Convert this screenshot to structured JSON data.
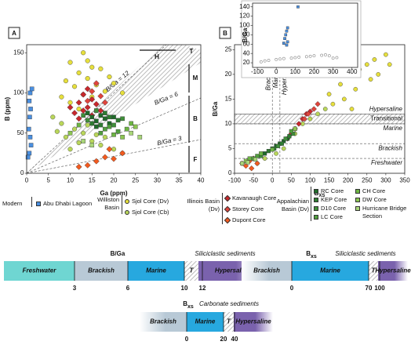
{
  "chart_data": [
    {
      "type": "scatter",
      "panel": "A",
      "xlabel": "Ga (ppm)",
      "ylabel": "B (ppm)",
      "xlim": [
        0,
        40
      ],
      "ylim": [
        0,
        160
      ],
      "xticks": [
        0,
        5,
        10,
        15,
        20,
        25,
        30,
        35,
        40
      ],
      "yticks": [
        0,
        50,
        100,
        150
      ],
      "annotations": [
        "B/Ga = 12",
        "B/Ga = 6",
        "B/Ga = 3"
      ],
      "zones": [
        "H",
        "T",
        "M",
        "B",
        "F"
      ],
      "series": [
        {
          "name": "Abu Dhabi Lagoon",
          "color": "#4a8fe0",
          "marker": "square",
          "x": [
            0.8,
            0.6,
            0.9,
            0.7,
            0.5,
            0.8,
            1.0,
            0.6,
            1.2,
            0.3
          ],
          "y": [
            100,
            90,
            80,
            70,
            55,
            45,
            35,
            25,
            105,
            20
          ]
        },
        {
          "name": "Sjol Core (Dv)",
          "color": "#e6df3c",
          "marker": "circle",
          "x": [
            13,
            10,
            15,
            12,
            17,
            14,
            9,
            16,
            20,
            11,
            18,
            13,
            8,
            15,
            10,
            22,
            12,
            19,
            14
          ],
          "y": [
            150,
            138,
            132,
            125,
            130,
            118,
            115,
            110,
            112,
            108,
            102,
            98,
            95,
            95,
            88,
            100,
            80,
            120,
            140
          ]
        },
        {
          "name": "Sjol Core (Cb)",
          "color": "#b9d65a",
          "marker": "circle",
          "x": [
            6,
            8,
            11,
            13,
            9,
            15,
            17,
            20,
            12,
            16,
            7,
            14,
            18,
            22,
            10
          ],
          "y": [
            70,
            62,
            55,
            50,
            45,
            40,
            35,
            30,
            38,
            48,
            52,
            60,
            45,
            25,
            30
          ]
        },
        {
          "name": "Kavanaugh Core",
          "color": "#c8282d",
          "marker": "diamond",
          "x": [
            14,
            13,
            15,
            12,
            14,
            16,
            13,
            11,
            15,
            12,
            17,
            10
          ],
          "y": [
            105,
            98,
            92,
            88,
            82,
            86,
            78,
            75,
            72,
            68,
            78,
            82
          ]
        },
        {
          "name": "Storey Core",
          "color": "#e0443c",
          "marker": "diamond",
          "x": [
            16,
            15,
            17,
            14,
            18
          ],
          "y": [
            112,
            102,
            96,
            90,
            88
          ]
        },
        {
          "name": "Dupont Core",
          "color": "#f25a1f",
          "marker": "diamond",
          "x": [
            18,
            16,
            20,
            14,
            22,
            12,
            19
          ],
          "y": [
            20,
            15,
            18,
            10,
            25,
            8,
            30
          ]
        },
        {
          "name": "RC Core",
          "color": "#1f6b2a",
          "marker": "square",
          "x": [
            15,
            16,
            17,
            18,
            19,
            14,
            20,
            16
          ],
          "y": [
            70,
            65,
            72,
            68,
            62,
            75,
            70,
            58
          ]
        },
        {
          "name": "KEP Core",
          "color": "#2f7d32",
          "marker": "square",
          "x": [
            17,
            18,
            19,
            21,
            15
          ],
          "y": [
            60,
            75,
            70,
            66,
            62
          ]
        },
        {
          "name": "D10 Core",
          "color": "#3f8f3a",
          "marker": "square",
          "x": [
            14,
            16,
            20,
            22,
            13
          ],
          "y": [
            66,
            78,
            60,
            68,
            72
          ]
        },
        {
          "name": "LC Core",
          "color": "#519f3e",
          "marker": "square",
          "x": [
            18,
            17,
            19,
            21
          ],
          "y": [
            55,
            50,
            58,
            52
          ]
        },
        {
          "name": "CH Core",
          "color": "#6db544",
          "marker": "square",
          "x": [
            12,
            20,
            23,
            24
          ],
          "y": [
            60,
            48,
            55,
            62
          ]
        },
        {
          "name": "DW Core",
          "color": "#8cc652",
          "marker": "square",
          "x": [
            10,
            22,
            25
          ],
          "y": [
            50,
            45,
            58
          ]
        },
        {
          "name": "Hurricane Bridge Section",
          "color": "#a9d67a",
          "marker": "square",
          "x": [
            13,
            24,
            26,
            15
          ],
          "y": [
            40,
            50,
            45,
            35
          ]
        }
      ]
    },
    {
      "type": "scatter",
      "panel": "B",
      "xlabel": "B",
      "xlabel_sub": "XS",
      "ylabel": "B/Ga",
      "xlim": [
        -100,
        350
      ],
      "ylim": [
        0,
        26
      ],
      "xticks": [
        -100,
        -50,
        0,
        50,
        100,
        150,
        200,
        250,
        300,
        350
      ],
      "yticks": [
        0,
        5,
        10,
        15,
        20,
        25
      ],
      "hlines": [
        {
          "value": 3,
          "label": "Freshwater"
        },
        {
          "value": 6,
          "label": "Brackish"
        },
        {
          "value": 10,
          "label": "Marine"
        },
        {
          "value": 12,
          "label": "Transitional"
        }
      ],
      "above_label": "Hypersaline",
      "vlines": [
        {
          "value": 0,
          "label": "Brackish"
        },
        {
          "value": 20,
          "label": "Marine"
        }
      ],
      "right_label": "Hypersaline",
      "series": [
        {
          "color": "#e6df3c",
          "marker": "circle",
          "x": [
            150,
            180,
            200,
            230,
            250,
            270,
            300,
            310,
            220,
            190,
            260,
            160,
            210,
            280
          ],
          "y": [
            16,
            18,
            20,
            21,
            22,
            23,
            24,
            22,
            17,
            15,
            19,
            14,
            13,
            20
          ]
        },
        {
          "color": "#b9d65a",
          "marker": "circle",
          "x": [
            20,
            40,
            60,
            80,
            100,
            30,
            10,
            -20,
            -40,
            120,
            140
          ],
          "y": [
            6,
            7,
            8,
            10,
            11,
            5,
            4,
            3,
            2,
            12,
            13
          ]
        },
        {
          "color": "#c8282d",
          "marker": "diamond",
          "x": [
            50,
            60,
            70,
            80,
            90,
            100,
            40
          ],
          "y": [
            8,
            9,
            10,
            11,
            12,
            12.5,
            7
          ]
        },
        {
          "color": "#e0443c",
          "marker": "diamond",
          "x": [
            110,
            120,
            95,
            85
          ],
          "y": [
            13,
            14,
            12,
            11
          ]
        },
        {
          "color": "#f25a1f",
          "marker": "diamond",
          "x": [
            -80,
            -70,
            -60,
            -50,
            -40,
            -55
          ],
          "y": [
            2,
            1.5,
            2.5,
            3,
            2,
            1
          ]
        },
        {
          "color": "#1f6b2a",
          "marker": "square",
          "x": [
            -20,
            0,
            20,
            40,
            10,
            30
          ],
          "y": [
            4,
            5,
            6,
            7,
            5.5,
            6.5
          ]
        },
        {
          "color": "#2f7d32",
          "marker": "square",
          "x": [
            -10,
            5,
            25,
            45
          ],
          "y": [
            4.5,
            5,
            6,
            7.5
          ]
        },
        {
          "color": "#3f8f3a",
          "marker": "square",
          "x": [
            15,
            35,
            55,
            -30
          ],
          "y": [
            5.5,
            7,
            8,
            3.5
          ]
        },
        {
          "color": "#519f3e",
          "marker": "square",
          "x": [
            -50,
            -40,
            50
          ],
          "y": [
            3,
            3.5,
            8.5
          ]
        },
        {
          "color": "#6db544",
          "marker": "square",
          "x": [
            -60,
            -30,
            0
          ],
          "y": [
            3,
            4,
            4.8
          ]
        },
        {
          "color": "#8cc652",
          "marker": "square",
          "x": [
            -70,
            60
          ],
          "y": [
            2.5,
            9
          ]
        },
        {
          "color": "#a9d67a",
          "marker": "square",
          "x": [
            -80,
            -45,
            -65
          ],
          "y": [
            2,
            2.8,
            2.2
          ]
        }
      ]
    },
    {
      "type": "scatter",
      "ylabel": "B/Ga",
      "xlim": [
        -125,
        430
      ],
      "ylim": [
        10,
        148
      ],
      "xticks": [
        -100,
        0,
        100,
        200,
        300,
        400
      ],
      "yticks": [
        20,
        40,
        60,
        80,
        100,
        120,
        140
      ],
      "series": [
        {
          "color": "#4a8fe0",
          "marker": "square",
          "x": [
            115,
            60,
            55,
            50,
            45,
            60,
            40,
            55
          ],
          "y": [
            140,
            95,
            88,
            80,
            72,
            65,
            62,
            58
          ]
        },
        {
          "color": "#888888",
          "marker": "ring",
          "x": [
            -80,
            -40,
            0,
            40,
            80,
            120,
            160,
            200,
            240,
            280,
            300,
            320,
            100,
            -60,
            20,
            180,
            260
          ],
          "y": [
            22,
            25,
            27,
            29,
            30,
            32,
            33,
            35,
            36,
            35,
            30,
            31,
            31,
            24,
            28,
            34,
            37
          ]
        }
      ]
    }
  ],
  "legend_groups": [
    "Modern",
    "Williston Basin",
    "Illinois Basin (Dv)",
    "Appalachian Basin (Dv)"
  ],
  "scales": [
    {
      "title": "B/Ga",
      "note": "Siliciclastic sediments",
      "boundaries": [
        3,
        6,
        10,
        12
      ],
      "segments": [
        {
          "label": "Freshwater",
          "color": "#6fd6d2"
        },
        {
          "label": "Brackish",
          "color": "#b8c9d6"
        },
        {
          "label": "Marine",
          "color": "#27a8df"
        },
        {
          "label": "T",
          "color": "#ffffff",
          "hatched": true
        },
        {
          "label": "Hypersaline",
          "color": "#7a62ad",
          "fade": "right"
        }
      ]
    },
    {
      "title": "B",
      "title_sub": "xs",
      "note": "Siliciclastic sediments",
      "boundaries": [
        0,
        70,
        100
      ],
      "segments": [
        {
          "label": "Brackish",
          "color": "#b8c9d6",
          "fade": "left"
        },
        {
          "label": "Marine",
          "color": "#27a8df"
        },
        {
          "label": "T",
          "color": "#ffffff",
          "hatched": true
        },
        {
          "label": "Hypersaline",
          "color": "#7a62ad",
          "fade": "right"
        }
      ]
    },
    {
      "title": "B",
      "title_sub": "xs",
      "note": "Carbonate sediments",
      "boundaries": [
        0,
        20,
        40
      ],
      "segments": [
        {
          "label": "Brackish",
          "color": "#b8c9d6",
          "fade": "left"
        },
        {
          "label": "Marine",
          "color": "#27a8df"
        },
        {
          "label": "T",
          "color": "#ffffff",
          "hatched": true
        },
        {
          "label": "Hypersaline",
          "color": "#7a62ad",
          "fade": "right"
        }
      ]
    }
  ]
}
